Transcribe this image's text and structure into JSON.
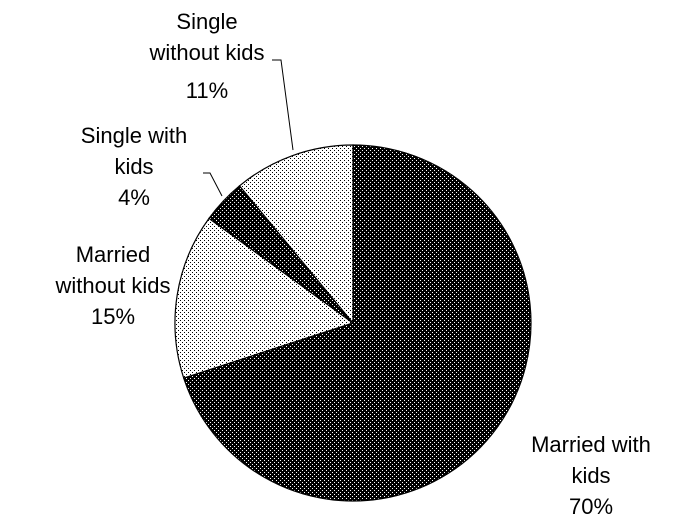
{
  "chart_data": {
    "type": "pie",
    "title": "",
    "start": "12 o'clock",
    "direction": "clockwise",
    "slices": [
      {
        "name": "Married with kids",
        "value": 70,
        "value_label": "70%",
        "label_lines": [
          "Married with",
          "kids",
          "70%"
        ],
        "fill": "dark-dotted",
        "color": "#000000"
      },
      {
        "name": "Married without kids",
        "value": 15,
        "value_label": "15%",
        "label_lines": [
          "Married",
          "without kids",
          "15%"
        ],
        "fill": "light-dotted",
        "color": "#ffffff"
      },
      {
        "name": "Single with kids",
        "value": 4,
        "value_label": "4%",
        "label_lines": [
          "Single with",
          "kids",
          "4%"
        ],
        "fill": "dark-dotted",
        "color": "#000000"
      },
      {
        "name": "Single without kids",
        "value": 11,
        "value_label": "11%",
        "label_lines": [
          "Single",
          "without kids",
          "11%"
        ],
        "fill": "light-dotted",
        "color": "#ffffff"
      }
    ]
  }
}
